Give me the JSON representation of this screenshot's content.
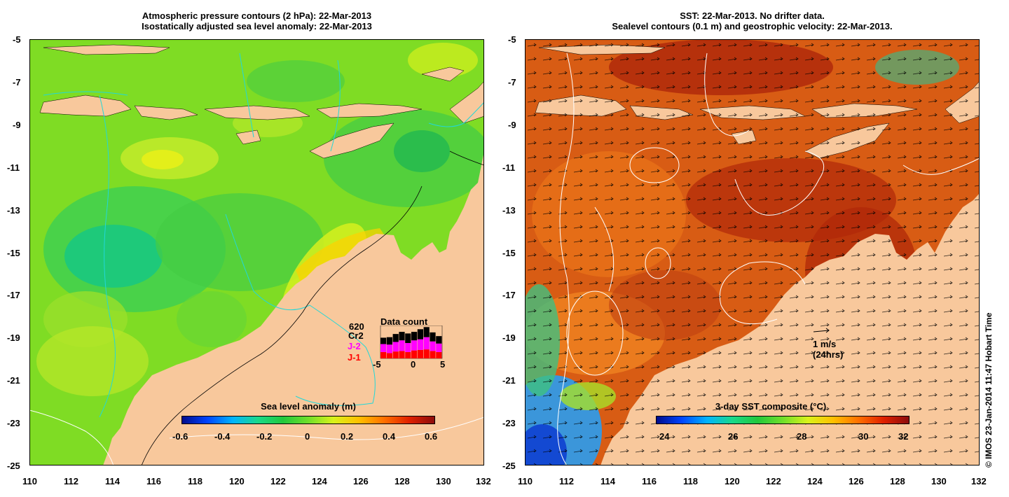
{
  "left_panel": {
    "title_line1": "Atmospheric pressure contours (2 hPa): 22-Mar-2013",
    "title_line2": "Isostatically adjusted sea level anomaly: 22-Mar-2013",
    "lat_ticks": [
      "-5",
      "-7",
      "-9",
      "-11",
      "-13",
      "-15",
      "-17",
      "-19",
      "-21",
      "-23",
      "-25"
    ],
    "lon_ticks": [
      "110",
      "112",
      "114",
      "116",
      "118",
      "120",
      "122",
      "124",
      "126",
      "128",
      "130",
      "132"
    ],
    "colorbar": {
      "title": "Sea level anomaly (m)",
      "ticks": [
        "-0.6",
        "-0.4",
        "-0.2",
        "0",
        "0.2",
        "0.4",
        "0.6"
      ],
      "colors": [
        "#000c8c",
        "#0044ff",
        "#00b4ff",
        "#19d98a",
        "#22c83c",
        "#70df2a",
        "#d9f21a",
        "#ffc000",
        "#ff7000",
        "#e02000",
        "#8c0c0c"
      ]
    },
    "data_count": {
      "title": "Data count",
      "top_value": "620",
      "missions": [
        {
          "label": "Cr2",
          "color": "#000000"
        },
        {
          "label": "J-2",
          "color": "#ff00ff"
        },
        {
          "label": "J-1",
          "color": "#ff0000"
        }
      ],
      "x_ticks": [
        "-5",
        "0",
        "5"
      ],
      "days": [
        -5,
        -4,
        -3,
        -2,
        -1,
        0,
        1,
        2,
        3,
        4
      ],
      "j1_counts": [
        120,
        100,
        130,
        140,
        120,
        150,
        160,
        170,
        140,
        120
      ],
      "j2_counts": [
        150,
        160,
        180,
        200,
        170,
        190,
        200,
        230,
        180,
        160
      ],
      "cr2_counts": [
        120,
        140,
        150,
        160,
        180,
        160,
        190,
        190,
        170,
        140
      ]
    }
  },
  "right_panel": {
    "title_line1": "SST: 22-Mar-2013. No drifter data.",
    "title_line2": "Sealevel contours (0.1 m) and geostrophic velocity: 22-Mar-2013.",
    "lat_ticks": [
      "-5",
      "-7",
      "-9",
      "-11",
      "-13",
      "-15",
      "-17",
      "-19",
      "-21",
      "-23",
      "-25"
    ],
    "lon_ticks": [
      "110",
      "112",
      "114",
      "116",
      "118",
      "120",
      "122",
      "124",
      "126",
      "128",
      "130",
      "132"
    ],
    "colorbar": {
      "title": "3-day SST composite (°C)",
      "ticks": [
        "24",
        "26",
        "28",
        "30",
        "32"
      ],
      "colors": [
        "#000c8c",
        "#0044ff",
        "#00b4ff",
        "#19d98a",
        "#22c83c",
        "#70df2a",
        "#d9f21a",
        "#ffc000",
        "#ff7000",
        "#e02000",
        "#8c0c0c"
      ]
    },
    "velocity_scale": {
      "label1": "1 m/s",
      "label2": "(24hrs)"
    }
  },
  "credit": "© IMOS 23-Jan-2014 11:47 Hobart Time",
  "colors": {
    "land": "#f8c89c",
    "sla_background": "#7fdc24",
    "sst_background": "#d85c14",
    "contour_cyan": "#22d8d8"
  }
}
